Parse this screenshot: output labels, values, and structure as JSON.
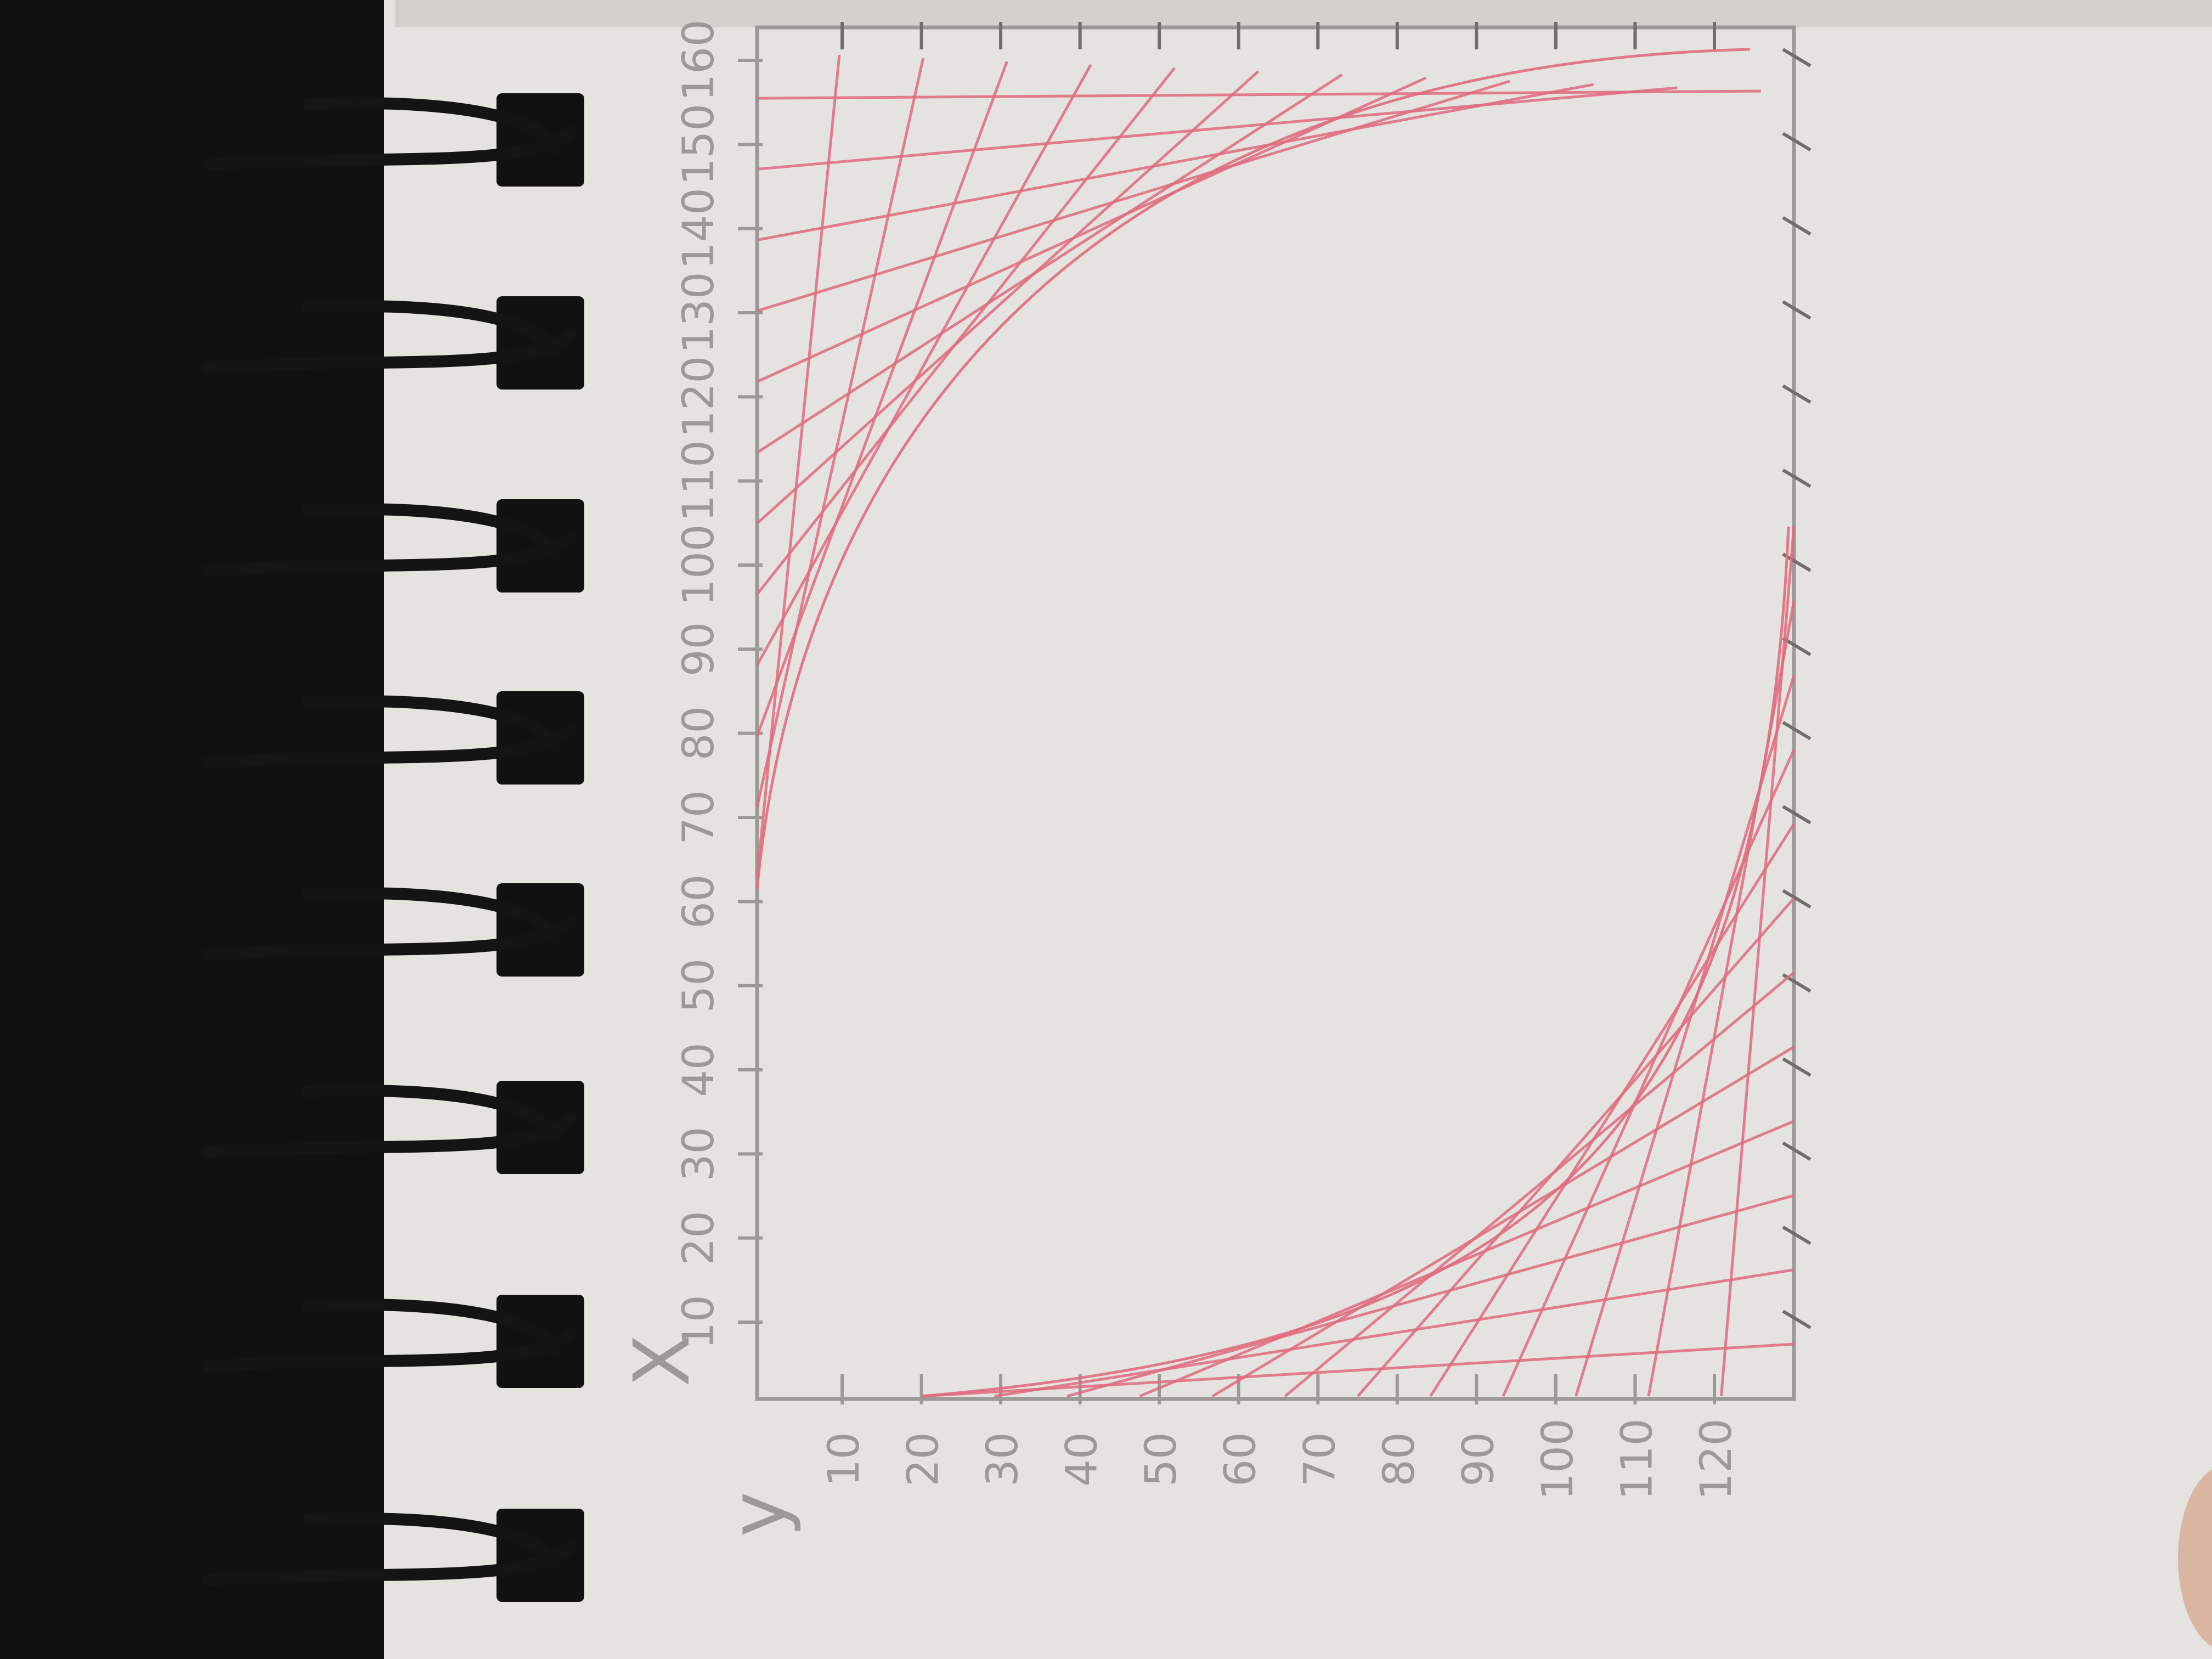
{
  "photo": {
    "subject": "notebook",
    "axes": {
      "x_letter": "X",
      "y_letter": "y",
      "x_labels": [
        "10",
        "20",
        "30",
        "40",
        "50",
        "60",
        "70",
        "80",
        "90",
        "100",
        "110",
        "120",
        "130",
        "140",
        "150",
        "160"
      ],
      "y_labels": [
        "10",
        "20",
        "30",
        "40",
        "50",
        "60",
        "70",
        "80",
        "90",
        "100",
        "110",
        "120"
      ]
    },
    "colors": {
      "pencil": "#9b9a97",
      "string_lines": "#e06b7e",
      "paper": "#e4e3e0",
      "ring": "#141414",
      "cover": "#111111",
      "background": "#4a4744"
    }
  }
}
